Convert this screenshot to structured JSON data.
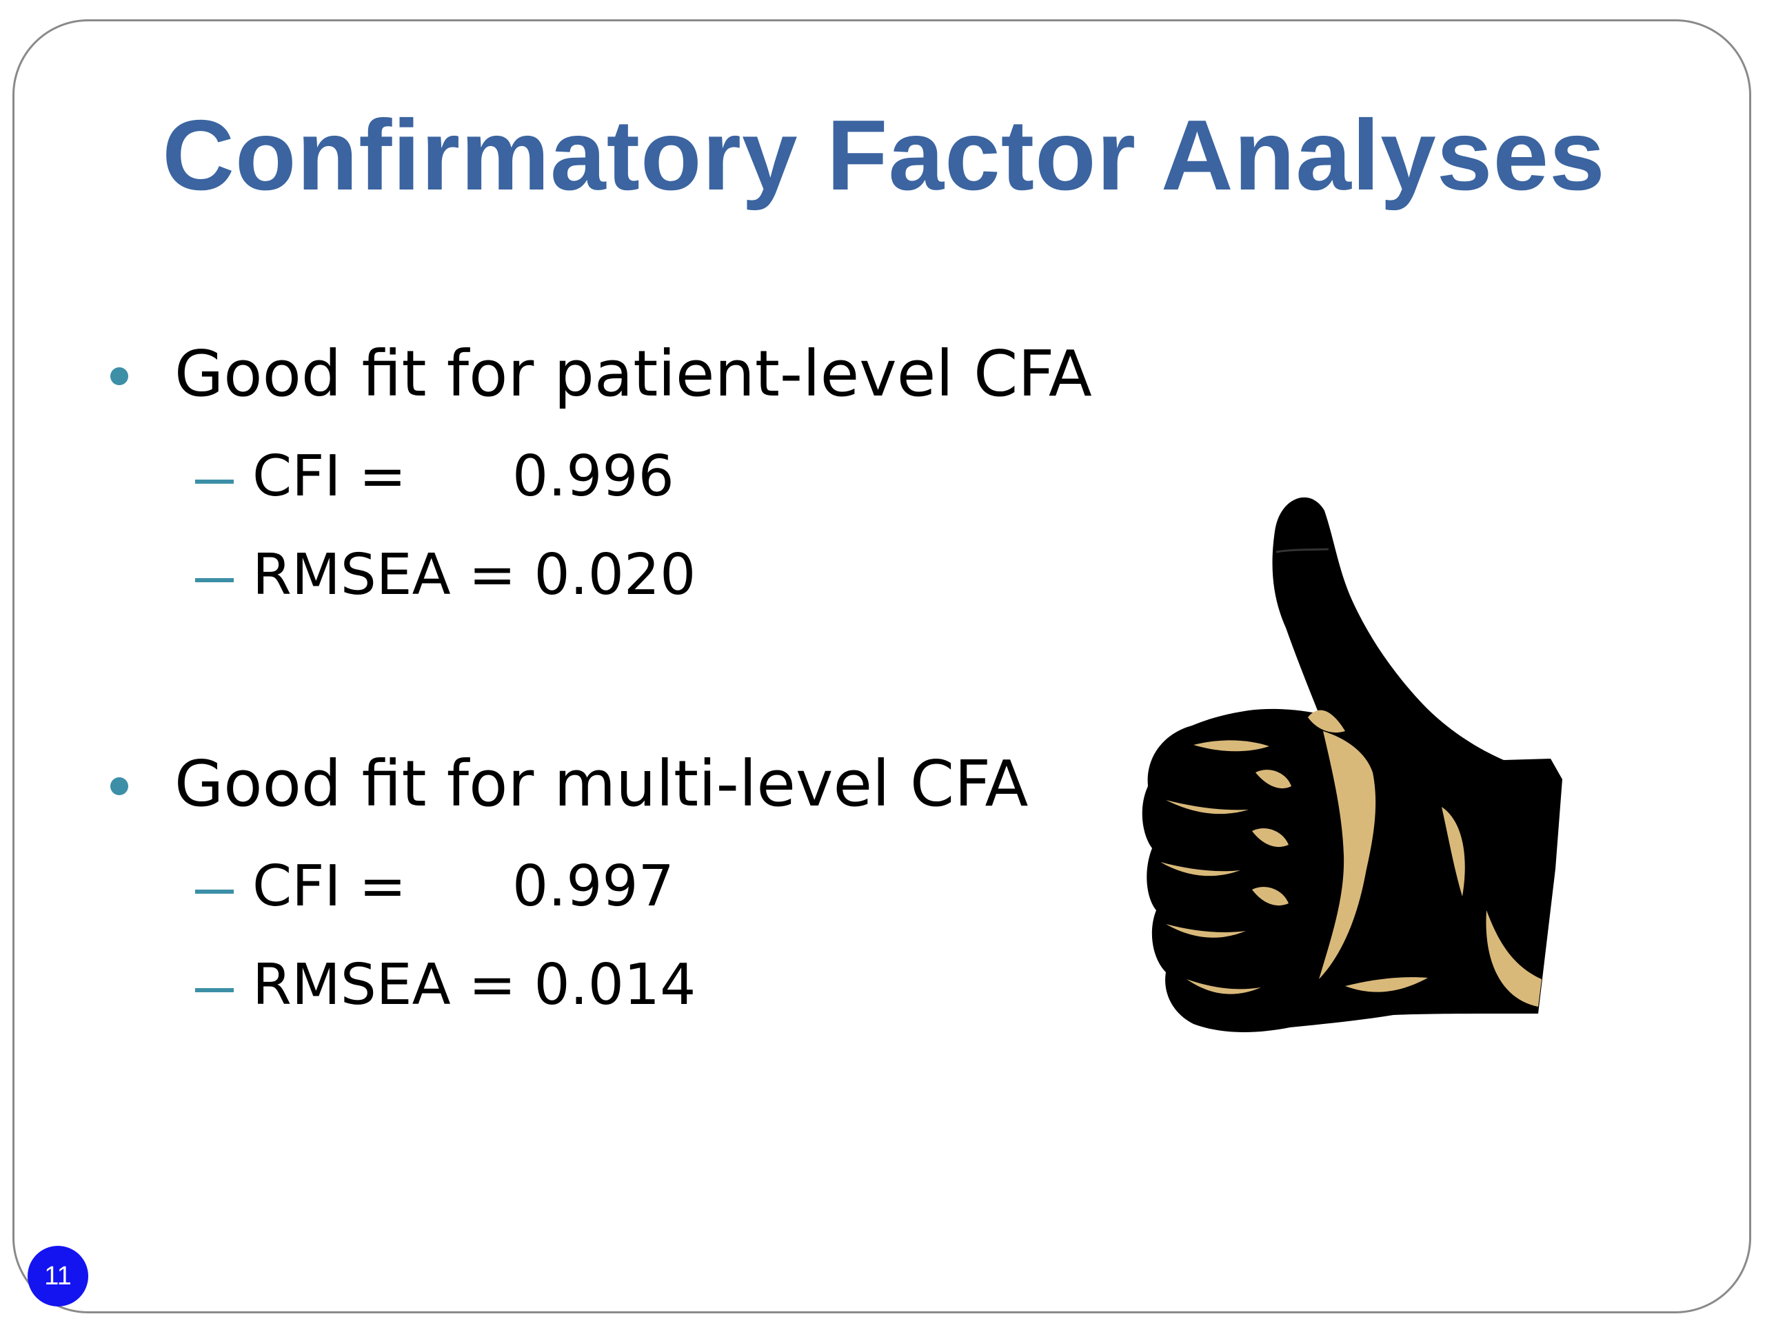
{
  "slide": {
    "title": "Confirmatory Factor Analyses",
    "bullets": [
      {
        "text": "Good fit for patient-level CFA",
        "items": [
          {
            "label": "CFI =",
            "value": "0.996"
          },
          {
            "text": "RMSEA = 0.020"
          }
        ]
      },
      {
        "text": "Good fit for multi-level CFA",
        "items": [
          {
            "label": "CFI =",
            "value": "0.997"
          },
          {
            "text": "RMSEA = 0.014"
          }
        ]
      }
    ],
    "page_number": "11",
    "image": {
      "icon": "thumbs-up-icon"
    },
    "colors": {
      "title": "#3b64a0",
      "bullet_marker": "#3c8fa6",
      "page_badge": "#1414f0",
      "thumb_fill": "#000000",
      "thumb_highlight": "#d9b97a"
    }
  }
}
